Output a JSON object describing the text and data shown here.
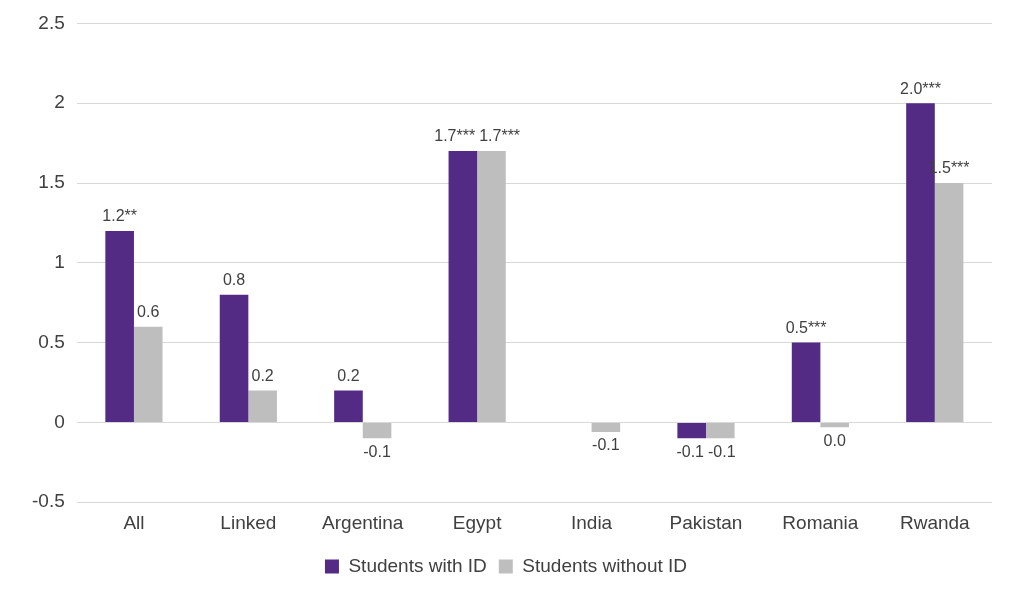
{
  "chart_data": {
    "type": "bar",
    "categories": [
      "All",
      "Linked",
      "Argentina",
      "Egypt",
      "India",
      "Pakistan",
      "Romania",
      "Rwanda"
    ],
    "series": [
      {
        "name": "Students with ID",
        "color": "#532a84",
        "values": [
          1.2,
          0.8,
          0.2,
          1.7,
          null,
          -0.1,
          0.5,
          2.0
        ],
        "value_labels": [
          "1.2**",
          "0.8",
          "0.2",
          "1.7***",
          null,
          "-0.1",
          "0.5***",
          "2.0***"
        ]
      },
      {
        "name": "Students without ID",
        "color": "#bfbebe",
        "values": [
          0.6,
          0.2,
          -0.1,
          1.7,
          -0.06,
          -0.1,
          -0.03,
          1.5
        ],
        "value_labels": [
          "0.6",
          "0.2",
          "-0.1",
          "1.7***",
          "-0.1",
          "-0.1",
          "0.0",
          "1.5***"
        ]
      }
    ],
    "ylim": [
      -0.5,
      2.5
    ],
    "yticks": [
      -0.5,
      0,
      0.5,
      1,
      1.5,
      2,
      2.5
    ],
    "grid": "y",
    "legend": "bottom"
  }
}
